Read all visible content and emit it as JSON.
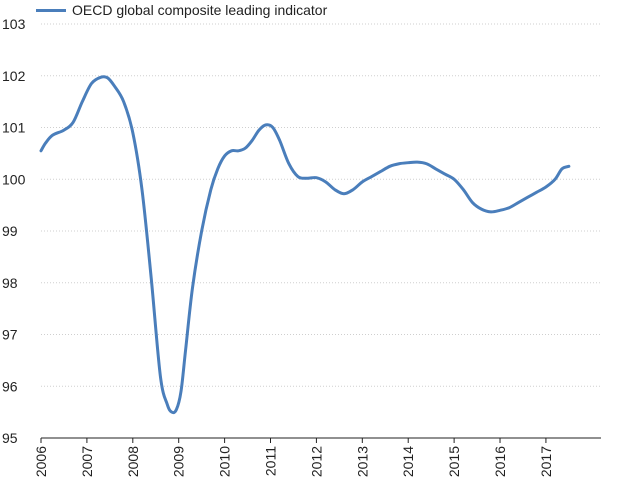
{
  "chart_data": {
    "type": "line",
    "legend_placement": "top-left",
    "grid": "horizontal",
    "ylim": [
      95,
      103
    ],
    "xlim": [
      2006,
      2018.2
    ],
    "y_ticks": [
      "95",
      "96",
      "97",
      "98",
      "99",
      "100",
      "101",
      "102",
      "103"
    ],
    "x_ticks": [
      "2006",
      "2007",
      "2008",
      "2009",
      "2010",
      "2011",
      "2012",
      "2013",
      "2014",
      "2015",
      "2016",
      "2017"
    ],
    "series": [
      {
        "name": "OECD global composite leading indicator",
        "color": "#4a7ebb",
        "x": [
          2006.0,
          2006.1,
          2006.25,
          2006.5,
          2006.7,
          2006.9,
          2007.1,
          2007.3,
          2007.45,
          2007.6,
          2007.8,
          2008.0,
          2008.2,
          2008.4,
          2008.6,
          2008.75,
          2008.85,
          2008.95,
          2009.05,
          2009.15,
          2009.3,
          2009.5,
          2009.7,
          2009.85,
          2010.0,
          2010.15,
          2010.3,
          2010.45,
          2010.6,
          2010.75,
          2010.9,
          2011.05,
          2011.2,
          2011.4,
          2011.6,
          2011.8,
          2012.0,
          2012.2,
          2012.4,
          2012.6,
          2012.8,
          2013.0,
          2013.2,
          2013.4,
          2013.6,
          2013.8,
          2014.0,
          2014.2,
          2014.4,
          2014.6,
          2014.8,
          2015.0,
          2015.2,
          2015.4,
          2015.6,
          2015.8,
          2016.0,
          2016.2,
          2016.4,
          2016.6,
          2016.8,
          2017.0,
          2017.2,
          2017.35,
          2017.5
        ],
        "values": [
          100.55,
          100.7,
          100.85,
          100.95,
          101.1,
          101.5,
          101.85,
          101.97,
          101.96,
          101.8,
          101.5,
          100.9,
          99.8,
          98.1,
          96.2,
          95.65,
          95.5,
          95.55,
          95.9,
          96.7,
          97.9,
          99.0,
          99.8,
          100.2,
          100.45,
          100.55,
          100.55,
          100.6,
          100.75,
          100.95,
          101.05,
          101.0,
          100.75,
          100.3,
          100.05,
          100.02,
          100.03,
          99.95,
          99.8,
          99.72,
          99.8,
          99.95,
          100.05,
          100.15,
          100.25,
          100.3,
          100.32,
          100.33,
          100.3,
          100.2,
          100.1,
          100.0,
          99.8,
          99.55,
          99.42,
          99.37,
          99.4,
          99.45,
          99.55,
          99.65,
          99.75,
          99.85,
          100.0,
          100.2,
          100.25
        ]
      }
    ]
  }
}
